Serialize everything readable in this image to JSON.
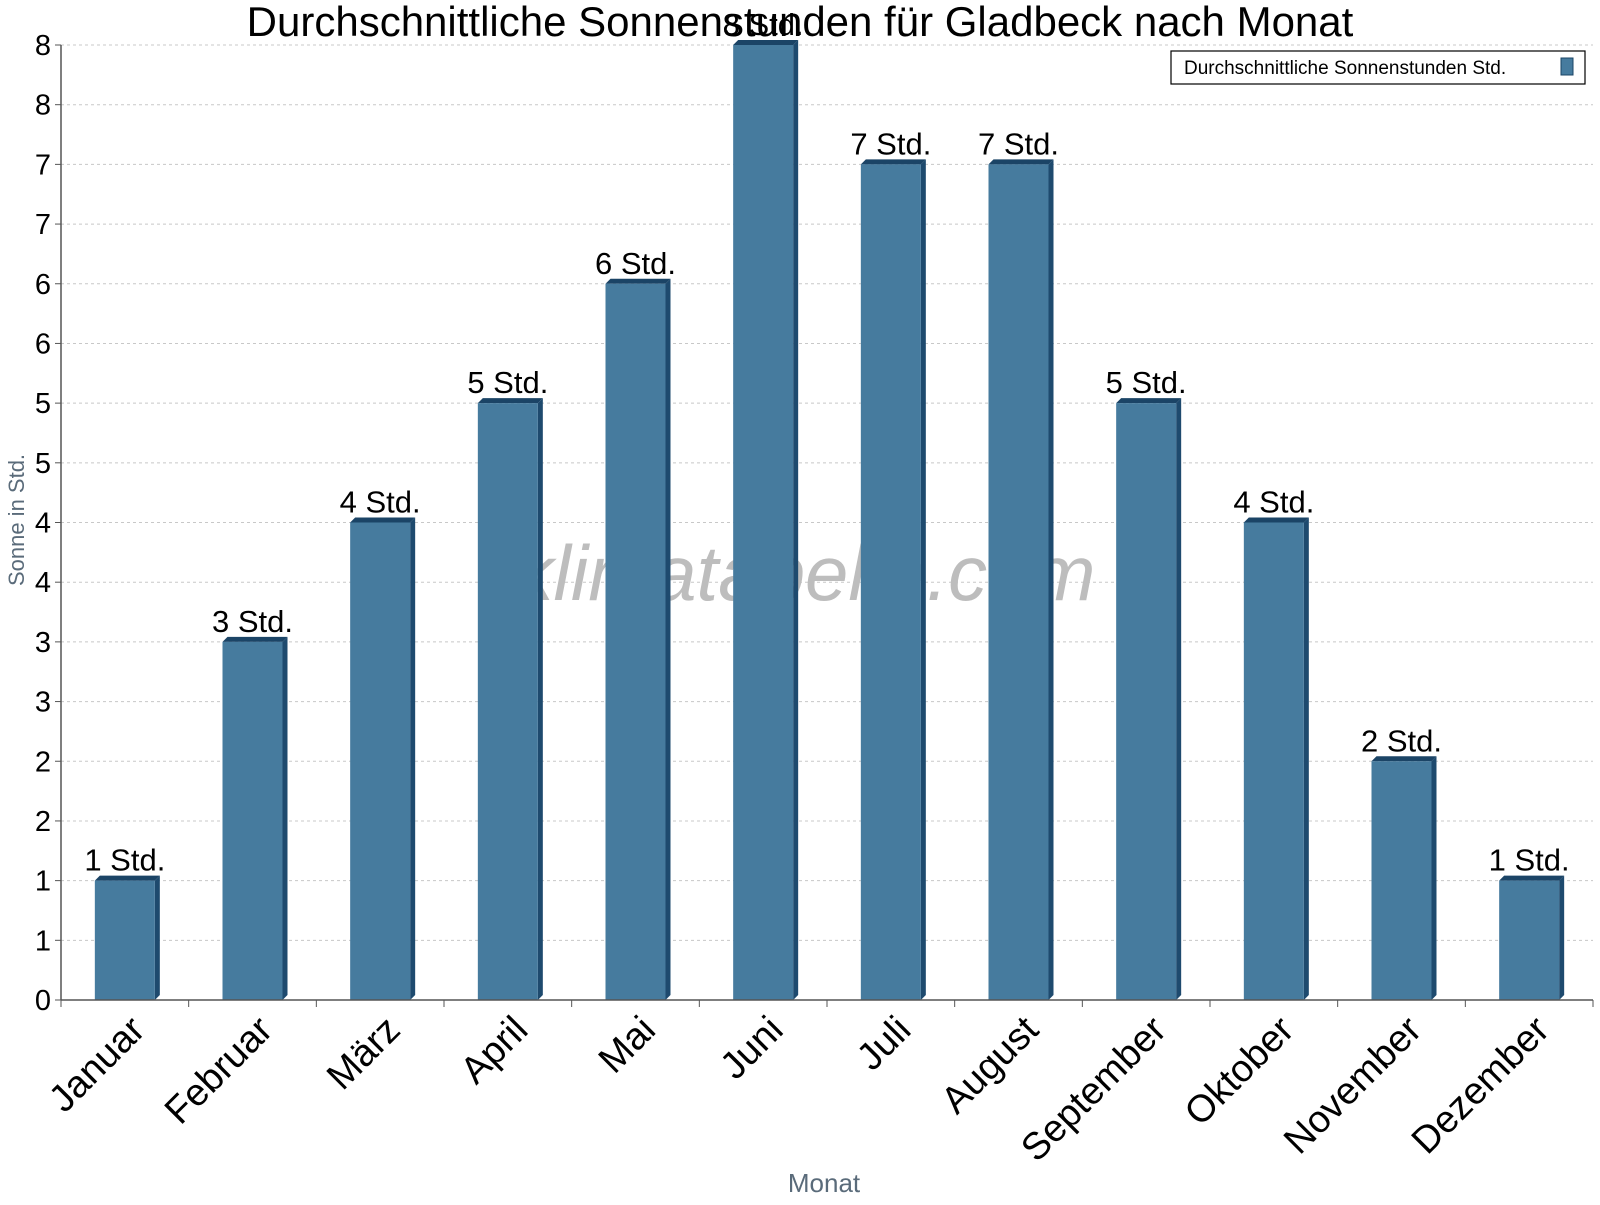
{
  "chart_data": {
    "type": "bar",
    "title": "Durchschnittliche Sonnenstunden für Gladbeck nach Monat",
    "xlabel": "Monat",
    "ylabel": "Sonne in Std.",
    "watermark": "klimatabelle.com",
    "categories": [
      "Januar",
      "Februar",
      "März",
      "April",
      "Mai",
      "Juni",
      "Juli",
      "August",
      "September",
      "Oktober",
      "November",
      "Dezember"
    ],
    "series": [
      {
        "name": "Durchschnittliche Sonnenstunden Std.",
        "values": [
          1,
          3,
          4,
          5,
          6,
          8,
          7,
          7,
          5,
          4,
          2,
          1
        ],
        "data_labels": [
          "1 Std.",
          "3 Std.",
          "4 Std.",
          "5 Std.",
          "6 Std.",
          "8 Std.",
          "7 Std.",
          "7 Std.",
          "5 Std.",
          "4 Std.",
          "2 Std.",
          "1 Std."
        ]
      }
    ],
    "yticks": [
      0,
      0.5,
      1,
      1.5,
      2,
      2.5,
      3,
      3.5,
      4,
      4.5,
      5,
      5.5,
      6,
      6.5,
      7,
      7.5,
      8
    ],
    "ytick_labels": [
      "0",
      "1",
      "1",
      "2",
      "2",
      "3",
      "3",
      "4",
      "4",
      "5",
      "5",
      "6",
      "6",
      "7",
      "7",
      "8",
      "8"
    ],
    "ylim": [
      0,
      8
    ],
    "grid": true,
    "legend_position": "top-right",
    "colors": {
      "bar": "#467b9e",
      "bar_side": "#1e4a6e",
      "bar_top": "#1b4466",
      "grid": "#c8c8c8",
      "axis": "#555555",
      "axis_title": "#5a6b7a",
      "watermark": "#bdbdbd"
    }
  }
}
